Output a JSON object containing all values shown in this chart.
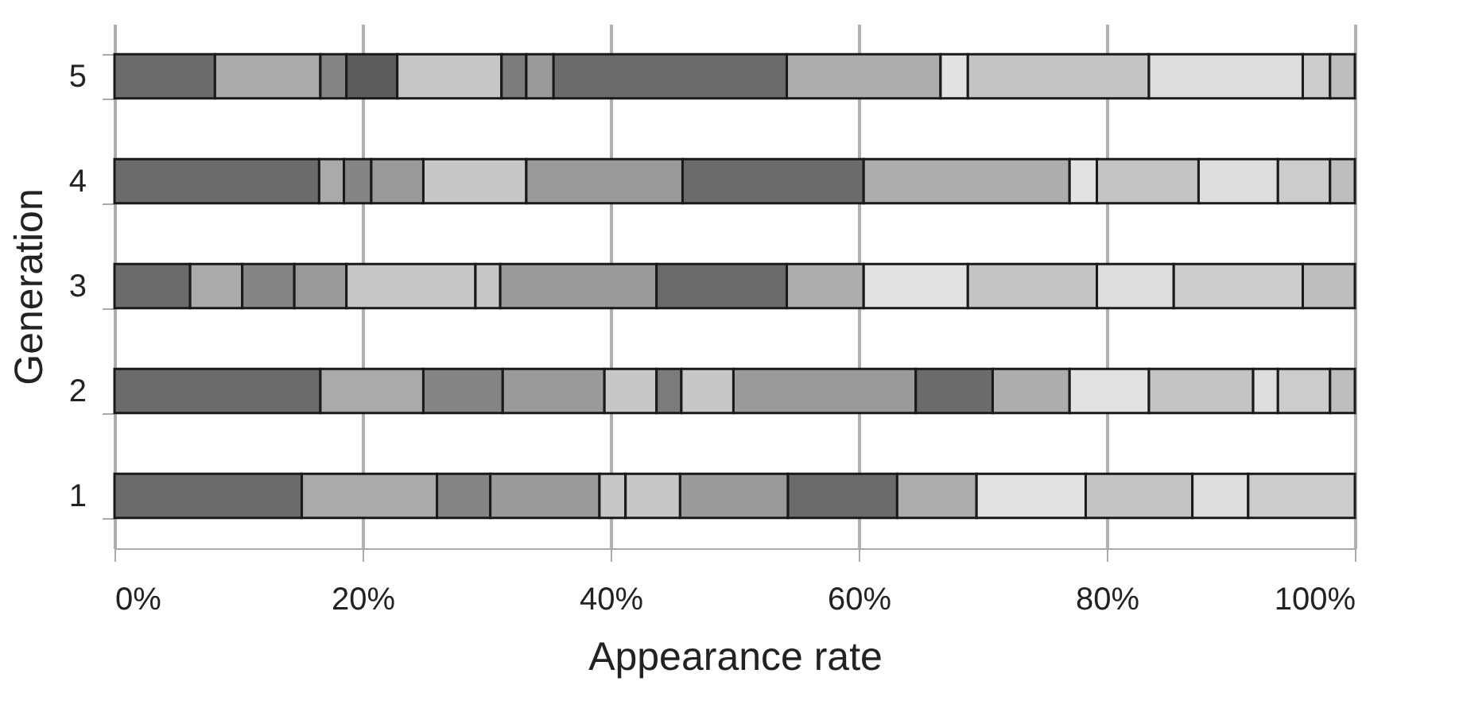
{
  "chart_data": {
    "type": "bar",
    "orientation": "horizontal",
    "stacked": true,
    "xlabel": "Appearance rate",
    "ylabel": "Generation",
    "categories": [
      "5",
      "4",
      "3",
      "2",
      "1"
    ],
    "series": [
      {
        "values": [
          8.1,
          16.5,
          6.1,
          16.6,
          15.1
        ],
        "colors": [
          "#6b6b6a",
          "#6b6b6a",
          "#6b6b6a",
          "#6b6b6a",
          "#6b6b6a"
        ]
      },
      {
        "values": [
          8.5,
          2.0,
          4.2,
          8.3,
          10.9
        ],
        "colors": [
          "#a9aaab",
          "#a9aaab",
          "#a9aaab",
          "#a9aaab",
          "#a9aaab"
        ]
      },
      {
        "values": [
          2.1,
          2.2,
          4.2,
          6.4,
          4.3
        ],
        "colors": [
          "#858584",
          "#858584",
          "#858584",
          "#858584",
          "#858584"
        ]
      },
      {
        "values": [
          4.1,
          4.2,
          4.2,
          8.2,
          8.8
        ],
        "colors": [
          "#5c5c5c",
          "#999a99",
          "#999a99",
          "#999a99",
          "#999a99"
        ]
      },
      {
        "values": [
          8.4,
          8.3,
          10.4,
          4.2,
          2.1
        ],
        "colors": [
          "#c6c7c6",
          "#c6c7c6",
          "#c6c7c6",
          "#c6c7c6",
          "#c6c7c6"
        ]
      },
      {
        "values": [
          2.0,
          12.6,
          2.0,
          2.0,
          4.4
        ],
        "colors": [
          "#7c7c7c",
          "#999a99",
          "#c6c7c6",
          "#7c7c7c",
          "#c6c7c6"
        ]
      },
      {
        "values": [
          2.2,
          14.6,
          12.6,
          4.2,
          8.7
        ],
        "colors": [
          "#999a99",
          "#6b6b6a",
          "#999a99",
          "#c6c7c6",
          "#999a99"
        ]
      },
      {
        "values": [
          18.8,
          16.6,
          10.5,
          14.7,
          8.8
        ],
        "colors": [
          "#6b6b6a",
          "#acadac",
          "#6b6b6a",
          "#999a99",
          "#6b6b6a"
        ]
      },
      {
        "values": [
          12.4,
          2.2,
          6.2,
          6.2,
          6.4
        ],
        "colors": [
          "#acadac",
          "#e1e2e1",
          "#acadac",
          "#6b6b6a",
          "#acadac"
        ]
      },
      {
        "values": [
          2.2,
          8.2,
          8.4,
          6.2,
          8.8
        ],
        "colors": [
          "#e1e2e1",
          "#c3c4c3",
          "#e1e2e1",
          "#acadac",
          "#e1e2e1"
        ]
      },
      {
        "values": [
          14.6,
          6.4,
          10.4,
          6.4,
          8.6
        ],
        "colors": [
          "#c3c4c3",
          "#dcdddc",
          "#c3c4c3",
          "#e1e2e1",
          "#c3c4c3"
        ]
      },
      {
        "values": [
          12.4,
          4.2,
          6.2,
          8.4,
          4.5
        ],
        "colors": [
          "#dcdddc",
          "#cbcccb",
          "#dcdddc",
          "#c3c4c3",
          "#dcdddc"
        ]
      },
      {
        "values": [
          2.2,
          2.0,
          10.4,
          2.0,
          8.6
        ],
        "colors": [
          "#cbcccb",
          "#bdbebd",
          "#cbcccb",
          "#dcdddc",
          "#cbcccb"
        ]
      },
      {
        "values": [
          2.0,
          null,
          4.2,
          4.2,
          null
        ],
        "colors": [
          "#bdbebd",
          null,
          "#bdbebd",
          "#cbcccb",
          null
        ]
      },
      {
        "values": [
          null,
          null,
          null,
          2.0,
          null
        ],
        "colors": [
          null,
          null,
          null,
          "#bdbebd",
          null
        ]
      }
    ],
    "xlim": [
      0,
      100
    ],
    "xticks": [
      {
        "value": 0,
        "label": "0%"
      },
      {
        "value": 20,
        "label": "20%"
      },
      {
        "value": 40,
        "label": "40%"
      },
      {
        "value": 60,
        "label": "60%"
      },
      {
        "value": 80,
        "label": "80%"
      },
      {
        "value": 100,
        "label": "100%"
      }
    ],
    "grid": "x"
  }
}
